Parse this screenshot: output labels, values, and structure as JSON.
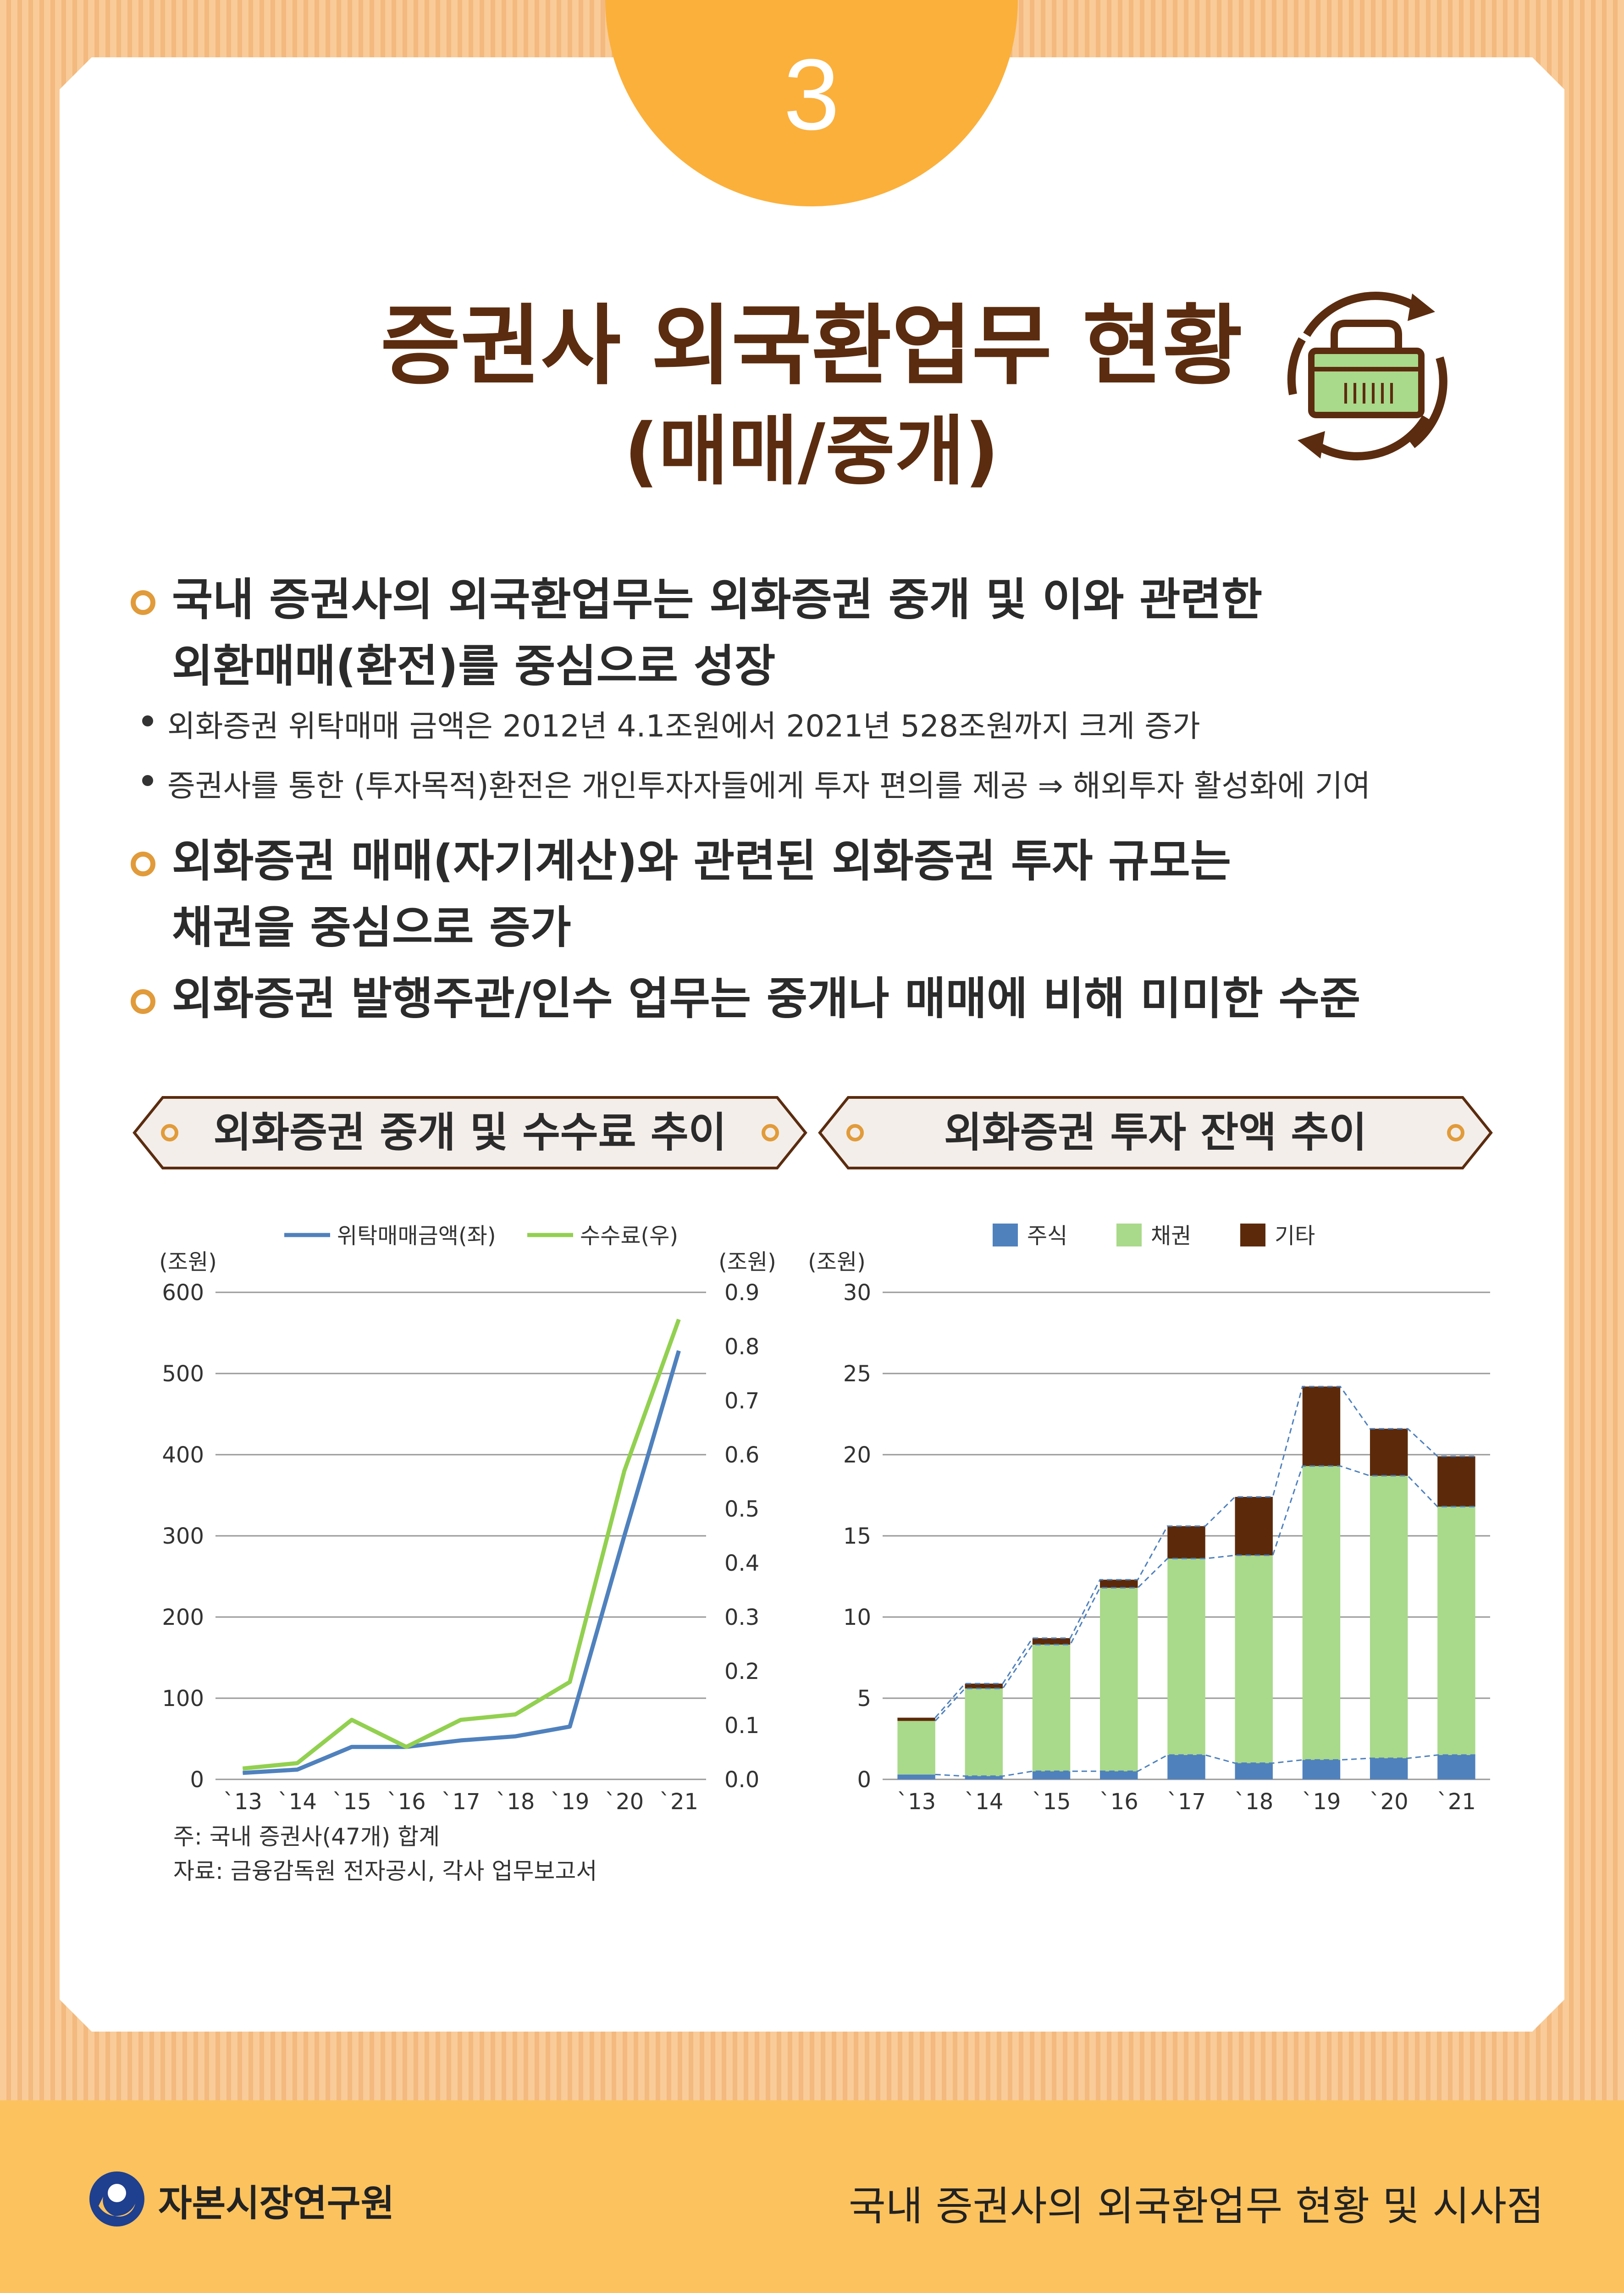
{
  "badge": "3",
  "title_line1": "증권사 외국환업무 현황",
  "title_line2": "(매매/중개)",
  "bullets": [
    {
      "lines": "국내 증권사의 외국환업무는 외화증권 중개 및 이와 관련한\n외환매매(환전)를 중심으로 성장"
    },
    {
      "sub": [
        "외화증권 위탁매매 금액은 2012년 4.1조원에서 2021년 528조원까지 크게 증가",
        "증권사를 통한 (투자목적)환전은 개인투자자들에게 투자 편의를 제공 ⇒ 해외투자 활성화에 기여"
      ]
    },
    {
      "lines": "외화증권 매매(자기계산)와 관련된 외화증권 투자 규모는\n채권을 중심으로 증가"
    },
    {
      "lines": "외화증권 발행주관/인수 업무는 중개나 매매에 비해 미미한 수준"
    }
  ],
  "section_left": "외화증권 중개 및 수수료 추이",
  "section_right": "외화증권 투자 잔액 추이",
  "notes": [
    "주: 국내 증권사(47개) 합계",
    "자료: 금융감독원 전자공시, 각사 업무보고서"
  ],
  "footer": {
    "org": "자본시장연구원",
    "report": "국내 증권사의 외국환업무 현황 및 시사점"
  },
  "colors": {
    "brown": "#5b2c0f",
    "orange": "#fbb03b",
    "blue": "#4f81bd",
    "green": "#92d050",
    "light_green": "#a9d98a",
    "dark_brown": "#5c2a0a"
  },
  "chart_data": [
    {
      "type": "line",
      "categories": [
        "`13",
        "`14",
        "`15",
        "`16",
        "`17",
        "`18",
        "`19",
        "`20",
        "`21"
      ],
      "series": [
        {
          "name": "위탁매매금액(좌)",
          "axis": "left",
          "values": [
            8,
            12,
            40,
            40,
            48,
            53,
            65,
            300,
            528
          ]
        },
        {
          "name": "수수료(우)",
          "axis": "right",
          "values": [
            0.02,
            0.03,
            0.11,
            0.06,
            0.11,
            0.12,
            0.18,
            0.57,
            0.85
          ]
        }
      ],
      "left_unit": "(조원)",
      "right_unit": "(조원)",
      "left_ylim": [
        0,
        600
      ],
      "left_ticks": [
        "600",
        "500",
        "400",
        "300",
        "200",
        "100",
        "0"
      ],
      "right_ylim": [
        0,
        0.9
      ],
      "right_ticks": [
        "0.9",
        "0.8",
        "0.7",
        "0.6",
        "0.5",
        "0.4",
        "0.3",
        "0.2",
        "0.1",
        "0.0"
      ],
      "legend": "top",
      "grid": true
    },
    {
      "type": "bar",
      "stacked": true,
      "categories": [
        "`13",
        "`14",
        "`15",
        "`16",
        "`17",
        "`18",
        "`19",
        "`20",
        "`21"
      ],
      "series": [
        {
          "name": "주식",
          "values": [
            0.3,
            0.2,
            0.5,
            0.5,
            1.5,
            1.0,
            1.2,
            1.3,
            1.5
          ]
        },
        {
          "name": "채권",
          "values": [
            3.3,
            5.4,
            7.8,
            11.3,
            12.1,
            12.8,
            18.1,
            17.4,
            15.3
          ]
        },
        {
          "name": "기타",
          "values": [
            0.2,
            0.3,
            0.4,
            0.5,
            2.0,
            3.6,
            4.9,
            2.9,
            3.1
          ]
        }
      ],
      "unit": "(조원)",
      "ylim": [
        0,
        30
      ],
      "yticks": [
        "30",
        "25",
        "20",
        "15",
        "10",
        "5",
        "0"
      ],
      "legend": "top",
      "grid": true
    }
  ]
}
